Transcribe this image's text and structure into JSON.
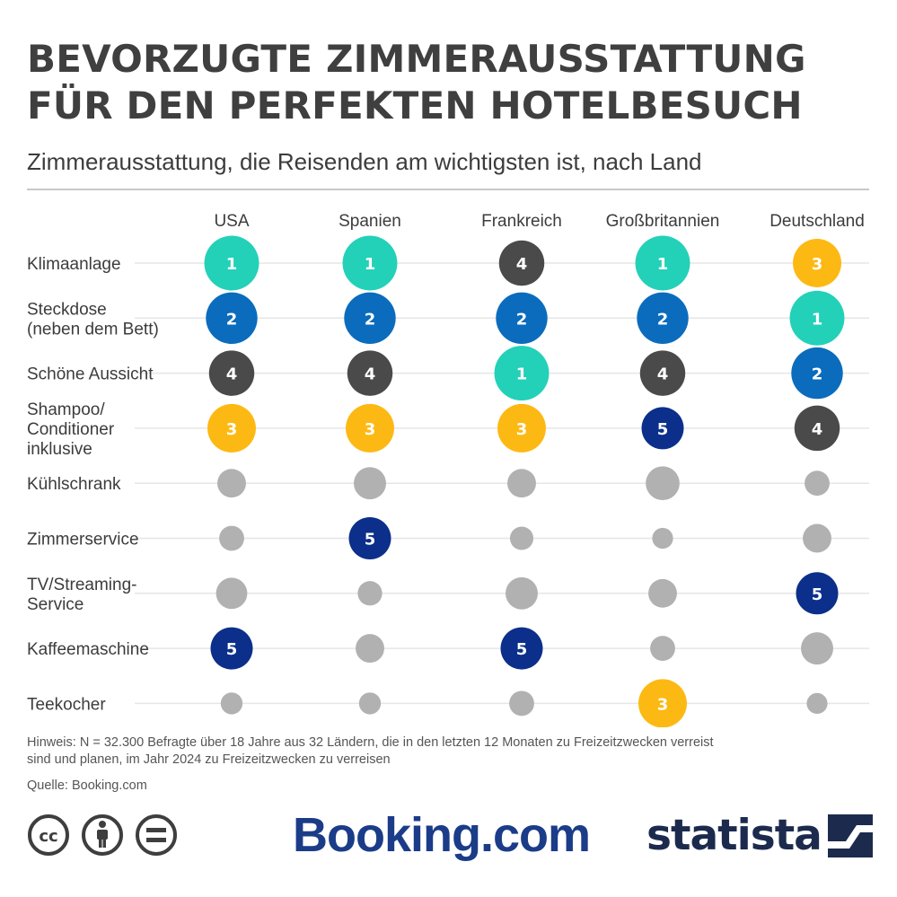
{
  "header": {
    "title_line1": "BEVORZUGTE ZIMMERAUSSTATTUNG",
    "title_line2": "FÜR DEN PERFEKTEN HOTELBESUCH",
    "subtitle": "Zimmerausstattung, die Reisenden am wichtigsten ist, nach Land"
  },
  "chart_data": {
    "type": "table",
    "title": "BEVORZUGTE ZIMMERAUSSTATTUNG FÜR DEN PERFEKTEN HOTELBESUCH",
    "subtitle": "Zimmerausstattung, die Reisenden am wichtigsten ist, nach Land",
    "columns": [
      "USA",
      "Spanien",
      "Frankreich",
      "Großbritannien",
      "Deutschland"
    ],
    "rows": [
      {
        "label": [
          "Klimaanlage"
        ],
        "ranks": [
          1,
          1,
          4,
          1,
          3
        ]
      },
      {
        "label": [
          "Steckdose",
          "(neben dem Bett)"
        ],
        "ranks": [
          2,
          2,
          2,
          2,
          1
        ]
      },
      {
        "label": [
          "Schöne Aussicht"
        ],
        "ranks": [
          4,
          4,
          1,
          4,
          2
        ]
      },
      {
        "label": [
          "Shampoo/",
          "Conditioner",
          "inklusive"
        ],
        "ranks": [
          3,
          3,
          3,
          5,
          4
        ]
      },
      {
        "label": [
          "Kühlschrank"
        ],
        "ranks": [
          null,
          null,
          null,
          null,
          null
        ],
        "rel_size": [
          0.55,
          0.62,
          0.55,
          0.65,
          0.48
        ]
      },
      {
        "label": [
          "Zimmerservice"
        ],
        "ranks": [
          null,
          5,
          null,
          null,
          null
        ],
        "rel_size": [
          0.48,
          null,
          0.45,
          0.4,
          0.55
        ]
      },
      {
        "label": [
          "TV/Streaming-",
          "Service"
        ],
        "ranks": [
          null,
          null,
          null,
          null,
          5
        ],
        "rel_size": [
          0.6,
          0.47,
          0.62,
          0.55,
          null
        ]
      },
      {
        "label": [
          "Kaffeemaschine"
        ],
        "ranks": [
          5,
          null,
          5,
          null,
          null
        ],
        "rel_size": [
          null,
          0.55,
          null,
          0.48,
          0.62
        ]
      },
      {
        "label": [
          "Teekocher"
        ],
        "ranks": [
          null,
          null,
          null,
          3,
          null
        ],
        "rel_size": [
          0.42,
          0.42,
          0.48,
          null,
          0.4
        ]
      }
    ],
    "rank_colors": {
      "1": "#22d1b8",
      "2": "#0b6cbd",
      "3": "#fdb913",
      "4": "#4a4a4a",
      "5": "#0b2f8a"
    },
    "unranked_color": "#b1b1b1",
    "legend": "none"
  },
  "footer": {
    "note_line1": "Hinweis: N = 32.300 Befragte über 18 Jahre aus 32 Ländern, die in den letzten 12 Monaten zu Freizeitzwecken verreist",
    "note_line2": "sind und planen, im Jahr 2024 zu Freizeitzwecken zu verreisen",
    "source": "Quelle: Booking.com",
    "booking_logo": "Booking.com",
    "statista_logo": "statista",
    "license_icons": [
      "cc-icon",
      "attribution-icon",
      "no-derivatives-icon"
    ]
  }
}
